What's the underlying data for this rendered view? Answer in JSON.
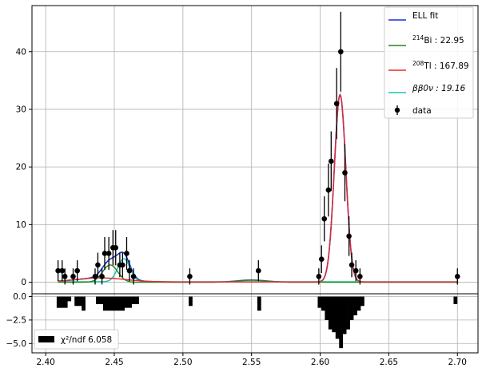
{
  "chart_data": [
    {
      "type": "scatter",
      "title": "",
      "xlabel": "",
      "ylabel": "",
      "xlim": [
        2.39,
        2.715
      ],
      "ylim": [
        -2,
        48
      ],
      "grid": true,
      "legend_position": "top-right",
      "x_ticks": [
        "2.40",
        "2.45",
        "2.50",
        "2.55",
        "2.60",
        "2.65",
        "2.70"
      ],
      "y_ticks": [
        "0",
        "10",
        "20",
        "30",
        "40"
      ],
      "colors": {
        "ell_fit": "#1f2fd6",
        "bi214": "#1e8a1e",
        "tl208": "#e8282a",
        "bb0nu": "#17c3b2",
        "data": "#000000"
      },
      "legend": {
        "ell_fit": "ELL fit",
        "bi_sup": "214",
        "bi_text": "Bi :  22.95",
        "tl_sup": "208",
        "tl_text": "Tl : 167.89",
        "bb_text": "ββ0ν :  19.16",
        "data": "data"
      },
      "series": [
        {
          "name": "data",
          "points": [
            [
              2.409,
              2
            ],
            [
              2.412,
              2
            ],
            [
              2.414,
              1
            ],
            [
              2.42,
              1
            ],
            [
              2.423,
              2
            ],
            [
              2.436,
              1
            ],
            [
              2.438,
              3
            ],
            [
              2.441,
              1
            ],
            [
              2.443,
              5
            ],
            [
              2.446,
              5
            ],
            [
              2.449,
              6
            ],
            [
              2.451,
              6
            ],
            [
              2.454,
              3
            ],
            [
              2.456,
              3
            ],
            [
              2.459,
              5
            ],
            [
              2.461,
              2
            ],
            [
              2.464,
              1
            ],
            [
              2.505,
              1
            ],
            [
              2.555,
              2
            ],
            [
              2.599,
              1
            ],
            [
              2.601,
              4
            ],
            [
              2.603,
              11
            ],
            [
              2.606,
              16
            ],
            [
              2.608,
              21
            ],
            [
              2.612,
              31
            ],
            [
              2.615,
              40
            ],
            [
              2.618,
              19
            ],
            [
              2.621,
              8
            ],
            [
              2.623,
              3
            ],
            [
              2.626,
              2
            ],
            [
              2.629,
              1
            ],
            [
              2.7,
              1
            ]
          ]
        }
      ]
    },
    {
      "type": "bar",
      "title": "",
      "xlabel": "",
      "ylabel": "",
      "xlim": [
        2.39,
        2.715
      ],
      "ylim": [
        -6,
        0.3
      ],
      "grid": true,
      "legend_position": "bottom-left",
      "x_ticks": [
        "2.40",
        "2.45",
        "2.50",
        "2.55",
        "2.60",
        "2.65",
        "2.70"
      ],
      "y_ticks": [
        "0.0",
        "−2.5",
        "−5.0"
      ],
      "legend": {
        "chi_label": "χ²/ndf  6.058"
      },
      "bar_width": 0.0026,
      "bins": [
        [
          2.4093,
          -1.2
        ],
        [
          2.4119,
          -1.2
        ],
        [
          2.4145,
          -1.2
        ],
        [
          2.4171,
          -0.5
        ],
        [
          2.4223,
          -1.0
        ],
        [
          2.4249,
          -1.0
        ],
        [
          2.4275,
          -1.5
        ],
        [
          2.4379,
          -0.8
        ],
        [
          2.4405,
          -0.8
        ],
        [
          2.4431,
          -1.5
        ],
        [
          2.4457,
          -1.5
        ],
        [
          2.4483,
          -1.5
        ],
        [
          2.4509,
          -1.5
        ],
        [
          2.4535,
          -1.5
        ],
        [
          2.4561,
          -1.5
        ],
        [
          2.4587,
          -1.2
        ],
        [
          2.4613,
          -1.2
        ],
        [
          2.4639,
          -0.8
        ],
        [
          2.4665,
          -0.8
        ],
        [
          2.5055,
          -1.0
        ],
        [
          2.5555,
          -1.5
        ],
        [
          2.5995,
          -1.2
        ],
        [
          2.6021,
          -1.5
        ],
        [
          2.6047,
          -2.5
        ],
        [
          2.6073,
          -3.5
        ],
        [
          2.6099,
          -3.8
        ],
        [
          2.6125,
          -4.5
        ],
        [
          2.6151,
          -5.5
        ],
        [
          2.6177,
          -4.0
        ],
        [
          2.6203,
          -3.5
        ],
        [
          2.6229,
          -2.5
        ],
        [
          2.6255,
          -2.0
        ],
        [
          2.6281,
          -1.5
        ],
        [
          2.6307,
          -1.0
        ],
        [
          2.6985,
          -0.8
        ]
      ]
    }
  ]
}
